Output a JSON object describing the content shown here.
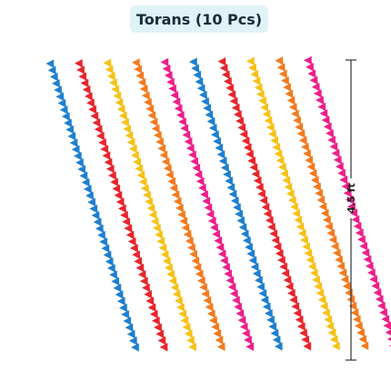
{
  "title": "Torans (10 Pcs)",
  "dimension_label": "4.5 ft",
  "colors": {
    "badge_bg": "#dff3f8",
    "pink": "#ee1f8a",
    "red": "#e8262c",
    "orange": "#f47a20",
    "yellow": "#f7c116",
    "blue": "#1f7fd0"
  },
  "strings": [
    {
      "name": "blue",
      "color_sequence": [
        "blue"
      ]
    },
    {
      "name": "red",
      "color_sequence": [
        "red"
      ]
    },
    {
      "name": "yellow",
      "color_sequence": [
        "yellow"
      ]
    },
    {
      "name": "orange",
      "color_sequence": [
        "orange"
      ]
    },
    {
      "name": "pink",
      "color_sequence": [
        "pink"
      ]
    },
    {
      "name": "blue",
      "color_sequence": [
        "blue"
      ]
    },
    {
      "name": "red",
      "color_sequence": [
        "red"
      ]
    },
    {
      "name": "yellow",
      "color_sequence": [
        "yellow"
      ]
    },
    {
      "name": "orange",
      "color_sequence": [
        "orange"
      ]
    },
    {
      "name": "pink",
      "color_sequence": [
        "pink"
      ]
    }
  ]
}
